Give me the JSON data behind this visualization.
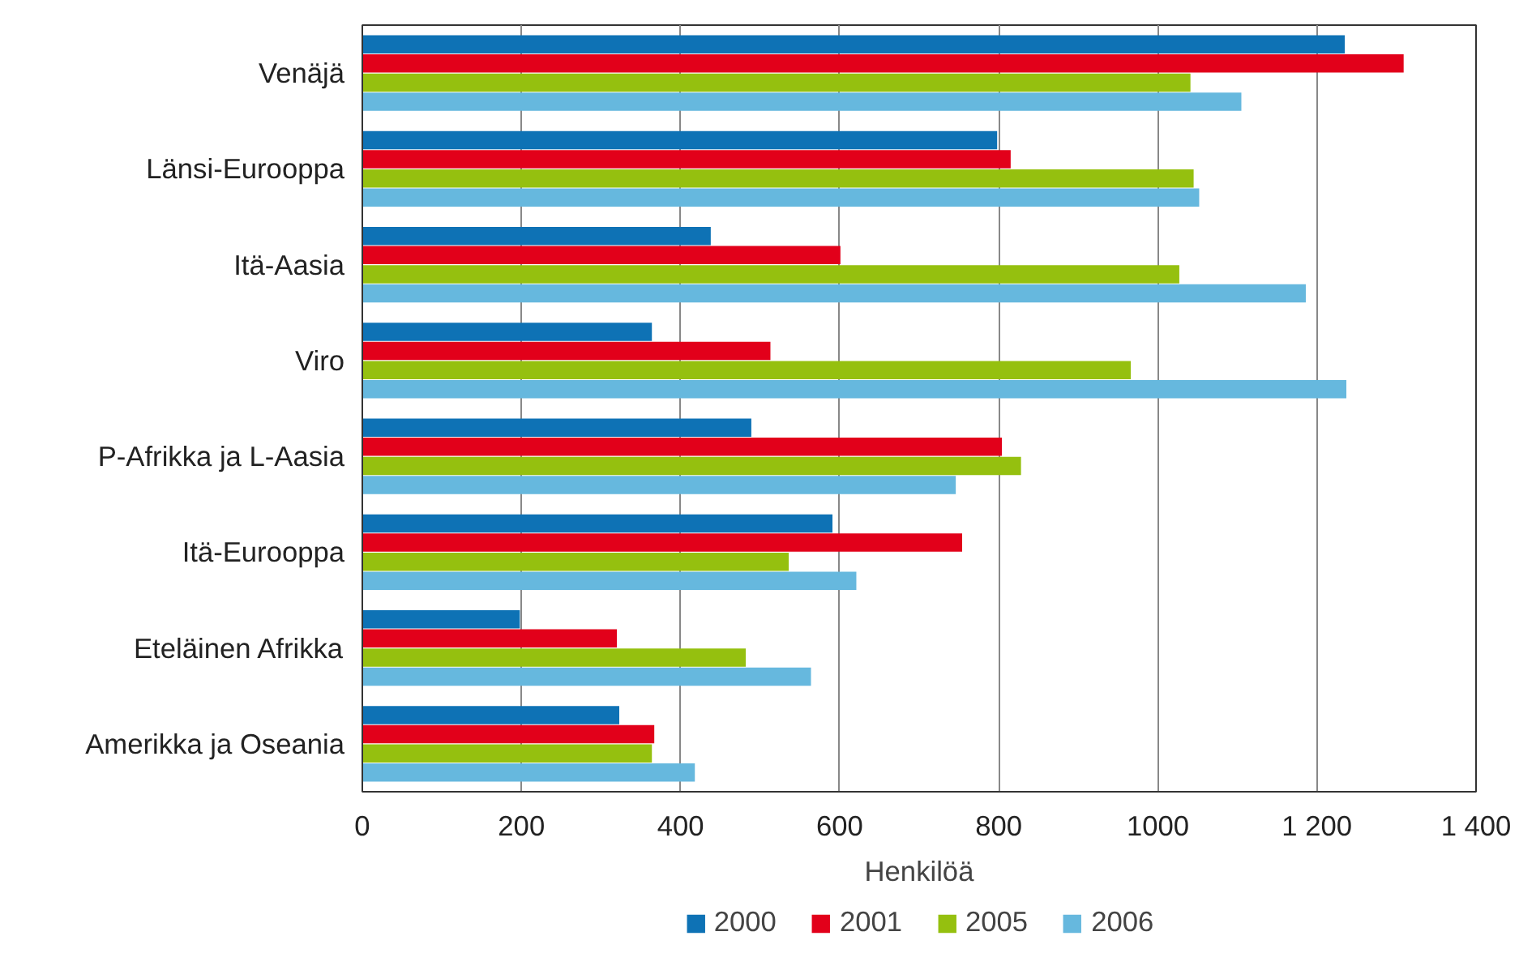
{
  "chart_data": {
    "type": "bar",
    "orientation": "horizontal",
    "xlabel": "Henkilöä",
    "categories": [
      "Venäjä",
      "Länsi-Eurooppa",
      "Itä-Aasia",
      "Viro",
      "P-Afrikka ja L-Aasia",
      "Itä-Eurooppa",
      "Eteläinen Afrikka",
      "Amerikka ja Oseania"
    ],
    "series": [
      {
        "name": "2000",
        "color": "#0e72b5",
        "values": [
          1235,
          798,
          438,
          364,
          489,
          591,
          198,
          323
        ]
      },
      {
        "name": "2001",
        "color": "#e2001a",
        "values": [
          1309,
          815,
          601,
          513,
          804,
          754,
          320,
          367
        ]
      },
      {
        "name": "2005",
        "color": "#95c00f",
        "values": [
          1041,
          1045,
          1027,
          966,
          828,
          536,
          482,
          364
        ]
      },
      {
        "name": "2006",
        "color": "#66b8de",
        "values": [
          1105,
          1052,
          1186,
          1237,
          746,
          621,
          564,
          418
        ]
      }
    ],
    "xlim": [
      0,
      1400
    ],
    "xticks": [
      0,
      200,
      400,
      600,
      800,
      1000,
      {
        "value": 1200,
        "label": "1 200"
      },
      {
        "value": 1400,
        "label": "1 400"
      }
    ],
    "grid": "x",
    "legend": "bottom"
  }
}
